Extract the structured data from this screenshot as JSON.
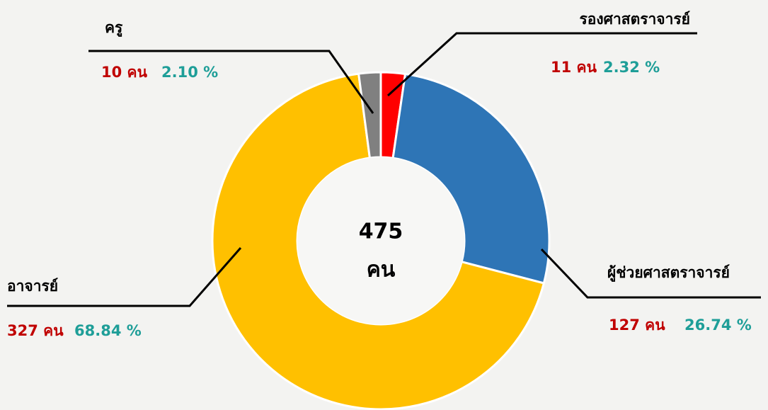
{
  "chart_data": {
    "type": "donut",
    "center_value": "475",
    "center_unit": "คน",
    "categories": [
      "รองศาสตราจารย์",
      "ผู้ช่วยศาสตราจารย์",
      "อาจารย์",
      "ครู"
    ],
    "values": [
      11,
      127,
      327,
      10
    ],
    "value_labels": [
      "11 คน",
      "127 คน",
      "327 คน",
      "10 คน"
    ],
    "percent_labels": [
      "2.32 %",
      "26.74 %",
      "68.84 %",
      "2.10 %"
    ],
    "colors": [
      "#ff0000",
      "#2e75b6",
      "#ffc000",
      "#808080"
    ]
  }
}
